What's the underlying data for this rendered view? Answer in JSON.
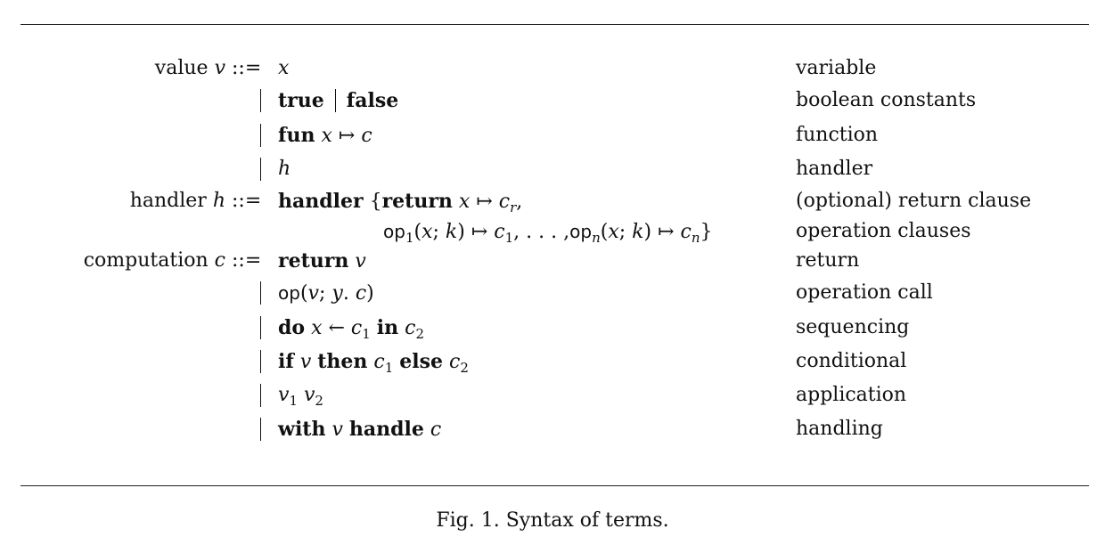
{
  "rows": [
    {
      "lhs_word": "value",
      "lhs_var": "v",
      "def": "::=",
      "parts": [
        "x"
      ],
      "desc": "variable"
    },
    {
      "parts": [
        "true",
        "false"
      ],
      "desc": "boolean constants"
    },
    {
      "parts": [
        "fun",
        "x",
        "↦",
        "c"
      ],
      "desc": "function"
    },
    {
      "parts": [
        "h"
      ],
      "desc": "handler"
    },
    {
      "lhs_word": "handler",
      "lhs_var": "h",
      "def": "::=",
      "parts": [
        "handler",
        "{",
        "return",
        "x",
        "↦",
        "c",
        "r",
        ","
      ],
      "desc": "(optional) return clause"
    },
    {
      "parts": [
        "op",
        "1",
        "(",
        "x",
        ";",
        "k",
        ")",
        "↦",
        "c",
        "1",
        ", . . . ,",
        "op",
        "n",
        "(",
        "x",
        ";",
        "k",
        ")",
        "↦",
        "c",
        "n",
        "}"
      ],
      "desc": "operation clauses"
    },
    {
      "lhs_word": "computation",
      "lhs_var": "c",
      "def": "::=",
      "parts": [
        "return",
        "v"
      ],
      "desc": "return"
    },
    {
      "parts": [
        "op",
        "(",
        "v",
        "; ",
        "y",
        ". ",
        "c",
        ")"
      ],
      "desc": "operation call"
    },
    {
      "parts": [
        "do",
        "x",
        "←",
        "c",
        "1",
        "in",
        "c",
        "2"
      ],
      "desc": "sequencing"
    },
    {
      "parts": [
        "if",
        "v",
        "then",
        "c",
        "1",
        "else",
        "c",
        "2"
      ],
      "desc": "conditional"
    },
    {
      "parts": [
        "v",
        "1",
        "v",
        "2"
      ],
      "desc": "application"
    },
    {
      "parts": [
        "with",
        "v",
        "handle",
        "c"
      ],
      "desc": "handling"
    }
  ],
  "caption": "Fig. 1. Syntax of terms."
}
